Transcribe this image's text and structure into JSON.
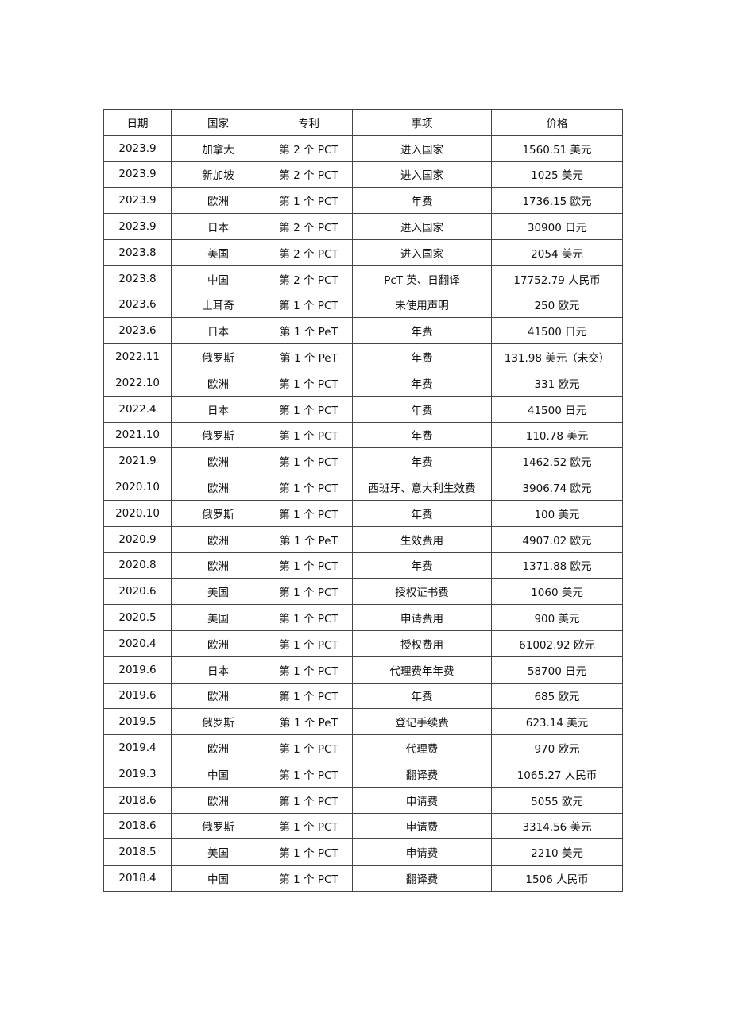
{
  "table": {
    "headers": [
      "日期",
      "国家",
      "专利",
      "事项",
      "价格"
    ],
    "rows": [
      [
        "2023.9",
        "加拿大",
        "第 2 个 PCT",
        "进入国家",
        "1560.51 美元"
      ],
      [
        "2023.9",
        "新加坡",
        "第 2 个 PCT",
        "进入国家",
        "1025 美元"
      ],
      [
        "2023.9",
        "欧洲",
        "第 1 个 PCT",
        "年费",
        "1736.15 欧元"
      ],
      [
        "2023.9",
        "日本",
        "第 2 个 PCT",
        "进入国家",
        "30900 日元"
      ],
      [
        "2023.8",
        "美国",
        "第 2 个 PCT",
        "进入国家",
        "2054 美元"
      ],
      [
        "2023.8",
        "中国",
        "第 2 个 PCT",
        "PcT 英、日翻译",
        "17752.79 人民币"
      ],
      [
        "2023.6",
        "土耳奇",
        "第 1 个 PCT",
        "未使用声明",
        "250 欧元"
      ],
      [
        "2023.6",
        "日本",
        "第 1 个 PeT",
        "年费",
        "41500 日元"
      ],
      [
        "2022.11",
        "俄罗斯",
        "第 1 个 PeT",
        "年费",
        "131.98 美元（未交）"
      ],
      [
        "2022.10",
        "欧洲",
        "第 1 个 PCT",
        "年费",
        "331 欧元"
      ],
      [
        "2022.4",
        "日本",
        "第 1 个 PCT",
        "年费",
        "41500 日元"
      ],
      [
        "2021.10",
        "俄罗斯",
        "第 1 个 PCT",
        "年费",
        "110.78 美元"
      ],
      [
        "2021.9",
        "欧洲",
        "第 1 个 PCT",
        "年费",
        "1462.52 欧元"
      ],
      [
        "2020.10",
        "欧洲",
        "第 1 个 PCT",
        "西班牙、意大利生效费",
        "3906.74 欧元"
      ],
      [
        "2020.10",
        "俄罗斯",
        "第 1 个 PCT",
        "年费",
        "100 美元"
      ],
      [
        "2020.9",
        "欧洲",
        "第 1 个 PeT",
        "生效费用",
        "4907.02 欧元"
      ],
      [
        "2020.8",
        "欧洲",
        "第 1 个 PCT",
        "年费",
        "1371.88 欧元"
      ],
      [
        "2020.6",
        "美国",
        "第 1 个 PCT",
        "授权证书费",
        "1060 美元"
      ],
      [
        "2020.5",
        "美国",
        "第 1 个 PCT",
        "申请费用",
        "900 美元"
      ],
      [
        "2020.4",
        "欧洲",
        "第 1 个 PCT",
        "授权费用",
        "61002.92 欧元"
      ],
      [
        "2019.6",
        "日本",
        "第 1 个 PCT",
        "代理费年年费",
        "58700 日元"
      ],
      [
        "2019.6",
        "欧洲",
        "第 1 个 PCT",
        "年费",
        "685 欧元"
      ],
      [
        "2019.5",
        "俄罗斯",
        "第 1 个 PeT",
        "登记手续费",
        "623.14 美元"
      ],
      [
        "2019.4",
        "欧洲",
        "第 1 个 PCT",
        "代理费",
        "970 欧元"
      ],
      [
        "2019.3",
        "中国",
        "第 1 个 PCT",
        "翻译费",
        "1065.27 人民币"
      ],
      [
        "2018.6",
        "欧洲",
        "第 1 个 PCT",
        "申请费",
        "5055 欧元"
      ],
      [
        "2018.6",
        "俄罗斯",
        "第 1 个 PCT",
        "申请费",
        "3314.56 美元"
      ],
      [
        "2018.5",
        "美国",
        "第 1 个 PCT",
        "申请费",
        "2210 美元"
      ],
      [
        "2018.4",
        "中国",
        "第 1 个 PCT",
        "翻译费",
        "1506 人民币"
      ]
    ]
  }
}
